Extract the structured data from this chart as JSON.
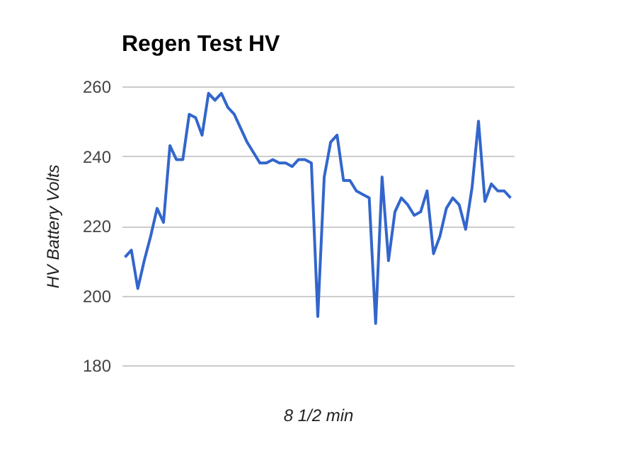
{
  "chart_data": {
    "type": "line",
    "title": "Regen Test HV",
    "xlabel": "8 1/2 min",
    "ylabel": "HV Battery Volts",
    "categories": [
      null,
      null,
      null,
      null,
      null,
      null,
      null,
      null,
      null,
      null,
      null,
      null,
      null,
      null,
      null,
      null,
      null,
      null,
      null,
      null,
      null,
      null,
      null,
      null,
      null,
      null,
      null,
      null,
      null,
      null,
      null,
      null,
      null,
      null,
      null,
      null,
      null,
      null,
      null,
      null,
      null,
      null,
      null,
      null,
      null,
      null,
      null,
      null,
      null,
      null,
      null,
      null,
      null,
      null,
      null,
      null,
      null,
      null,
      null,
      null,
      null
    ],
    "series": [
      {
        "color": "#3366cc",
        "values": [
          211,
          213,
          202,
          210,
          217,
          225,
          221,
          243,
          239,
          239,
          252,
          251,
          246,
          258,
          256,
          258,
          254,
          252,
          248,
          244,
          241,
          238,
          238,
          239,
          238,
          238,
          237,
          239,
          239,
          238,
          194,
          234,
          244,
          246,
          233,
          233,
          230,
          229,
          228,
          192,
          234,
          210,
          224,
          228,
          226,
          223,
          224,
          230,
          212,
          217,
          225,
          228,
          226,
          219,
          231,
          250,
          227,
          232,
          230,
          230,
          228
        ],
        "line_style": "solid"
      }
    ],
    "ylim": [
      180,
      260
    ],
    "yticks": [
      180,
      200,
      220,
      240,
      260
    ],
    "grid": "y",
    "tick_labels": "y"
  }
}
